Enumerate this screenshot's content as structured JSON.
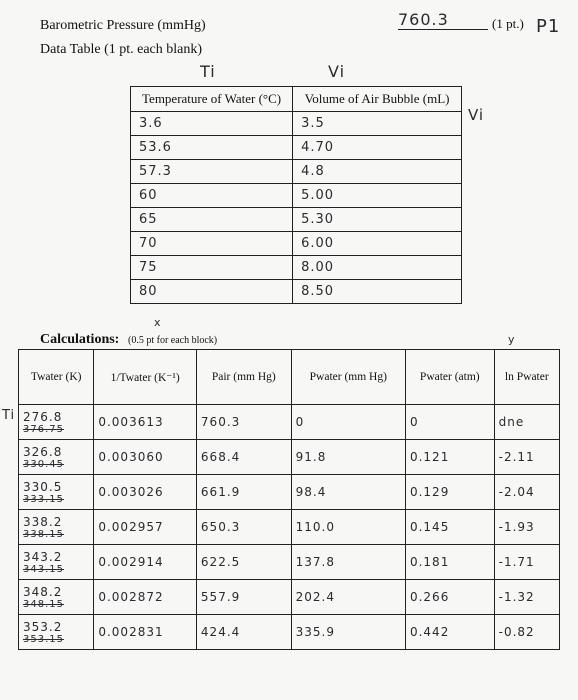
{
  "header": {
    "pressure_label": "Barometric Pressure (mmHg)",
    "pressure_value": "760.3",
    "points": "(1 pt.)",
    "pressure_note": "P1",
    "data_table_label": "Data Table (1 pt. each blank)"
  },
  "data_table": {
    "notes": [
      "Ti",
      "Vi",
      "Vi"
    ],
    "headers": [
      "Temperature of Water (°C)",
      "Volume of Air Bubble (mL)"
    ],
    "rows": [
      [
        "3.6",
        "3.5"
      ],
      [
        "53.6",
        "4.70"
      ],
      [
        "57.3",
        "4.8"
      ],
      [
        "60",
        "5.00"
      ],
      [
        "65",
        "5.30"
      ],
      [
        "70",
        "6.00"
      ],
      [
        "75",
        "8.00"
      ],
      [
        "80",
        "8.50"
      ]
    ]
  },
  "calculations": {
    "label": "Calculations:",
    "points": "(0.5 pt for each block)",
    "notes": [
      "x",
      "y",
      "Ti"
    ],
    "headers": [
      "Twater (K)",
      "1/Twater (K⁻¹)",
      "Pair (mm Hg)",
      "Pwater (mm Hg)",
      "Pwater (atm)",
      "ln Pwater"
    ],
    "struck": [
      "376.75",
      "330.45",
      "333.15",
      "338.15",
      "343.15",
      "348.15",
      "353.15"
    ],
    "rows": [
      [
        "276.8",
        "0.003613",
        "760.3",
        "0",
        "0",
        "dne"
      ],
      [
        "326.8",
        "0.003060",
        "668.4",
        "91.8",
        "0.121",
        "-2.11"
      ],
      [
        "330.5",
        "0.003026",
        "661.9",
        "98.4",
        "0.129",
        "-2.04"
      ],
      [
        "338.2",
        "0.002957",
        "650.3",
        "110.0",
        "0.145",
        "-1.93"
      ],
      [
        "343.2",
        "0.002914",
        "622.5",
        "137.8",
        "0.181",
        "-1.71"
      ],
      [
        "348.2",
        "0.002872",
        "557.9",
        "202.4",
        "0.266",
        "-1.32"
      ],
      [
        "353.2",
        "0.002831",
        "424.4",
        "335.9",
        "0.442",
        "-0.82"
      ]
    ]
  }
}
